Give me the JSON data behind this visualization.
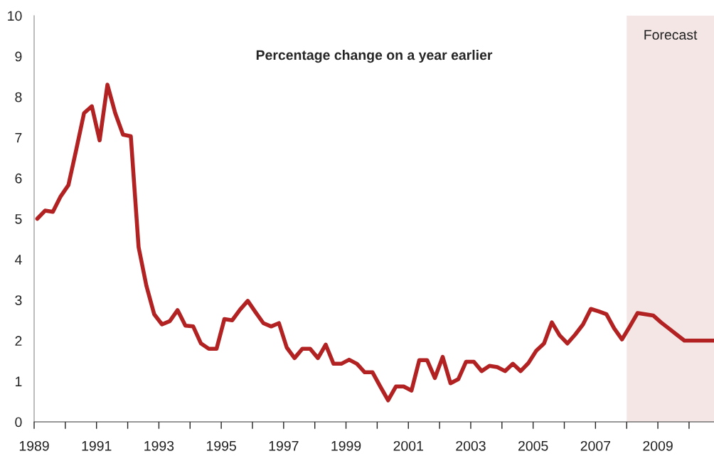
{
  "chart_data": {
    "type": "line",
    "annotations": [
      "Percentage change on a year earlier"
    ],
    "x": [
      1989.1,
      1989.35,
      1989.6,
      1989.85,
      1990.1,
      1990.35,
      1990.6,
      1990.85,
      1991.1,
      1991.35,
      1991.6,
      1991.85,
      1992.1,
      1992.35,
      1992.6,
      1992.85,
      1993.1,
      1993.35,
      1993.6,
      1993.85,
      1994.1,
      1994.35,
      1994.6,
      1994.85,
      1995.1,
      1995.35,
      1995.6,
      1995.85,
      1996.1,
      1996.35,
      1996.6,
      1996.85,
      1997.1,
      1997.35,
      1997.6,
      1997.85,
      1998.1,
      1998.35,
      1998.6,
      1998.85,
      1999.1,
      1999.35,
      1999.6,
      1999.85,
      2000.1,
      2000.35,
      2000.6,
      2000.85,
      2001.1,
      2001.35,
      2001.6,
      2001.85,
      2002.1,
      2002.35,
      2002.6,
      2002.85,
      2003.1,
      2003.35,
      2003.6,
      2003.85,
      2004.1,
      2004.35,
      2004.6,
      2004.85,
      2005.1,
      2005.35,
      2005.6,
      2005.85,
      2006.1,
      2006.35,
      2006.6,
      2006.85,
      2007.1,
      2007.35,
      2007.6,
      2007.85,
      2008.1,
      2008.35,
      2008.6,
      2008.85,
      2009.1,
      2009.35,
      2009.6,
      2009.85,
      2010.1,
      2010.35,
      2010.6,
      2010.8
    ],
    "series": [
      {
        "color": "#b22222",
        "values": [
          5.0,
          5.2,
          5.17,
          5.55,
          5.83,
          6.7,
          7.6,
          7.77,
          6.93,
          8.3,
          7.6,
          7.07,
          7.03,
          4.3,
          3.35,
          2.65,
          2.4,
          2.48,
          2.75,
          2.37,
          2.35,
          1.93,
          1.8,
          1.8,
          2.53,
          2.5,
          2.76,
          2.98,
          2.7,
          2.43,
          2.35,
          2.43,
          1.83,
          1.57,
          1.8,
          1.8,
          1.57,
          1.9,
          1.43,
          1.43,
          1.53,
          1.43,
          1.22,
          1.22,
          0.87,
          0.53,
          0.87,
          0.87,
          0.77,
          1.52,
          1.52,
          1.08,
          1.6,
          0.95,
          1.05,
          1.48,
          1.48,
          1.25,
          1.38,
          1.35,
          1.25,
          1.43,
          1.25,
          1.45,
          1.75,
          1.93,
          2.45,
          2.13,
          1.93,
          2.15,
          2.4,
          2.78,
          2.72,
          2.65,
          2.3,
          2.03,
          2.35,
          2.68,
          2.65,
          2.62,
          2.45,
          2.3,
          2.15,
          2.0,
          2.0,
          2.0,
          2.0,
          2.0
        ]
      }
    ],
    "bands": [
      {
        "axis": "x",
        "from": 2008.0,
        "to": 2010.8,
        "label": "Forecast",
        "color": "#f5e6e6"
      }
    ],
    "xlim": [
      1989,
      2010.8
    ],
    "xticks": [
      1989,
      {
        "value": 1990,
        "label": null
      },
      1991,
      {
        "value": 1992,
        "label": null
      },
      1993,
      {
        "value": 1994,
        "label": null
      },
      1995,
      {
        "value": 1996,
        "label": null
      },
      1997,
      {
        "value": 1998,
        "label": null
      },
      1999,
      {
        "value": 2000,
        "label": null
      },
      2001,
      {
        "value": 2002,
        "label": null
      },
      2003,
      {
        "value": 2004,
        "label": null
      },
      2005,
      {
        "value": 2006,
        "label": null
      },
      2007,
      {
        "value": 2008,
        "label": null
      },
      2009,
      {
        "value": 2010,
        "label": null
      }
    ],
    "ylim": [
      0,
      10
    ],
    "yticks": [
      0,
      1,
      2,
      3,
      4,
      5,
      6,
      7,
      8,
      9,
      10
    ],
    "grid": false,
    "line_style": "solid",
    "marker": "none"
  }
}
